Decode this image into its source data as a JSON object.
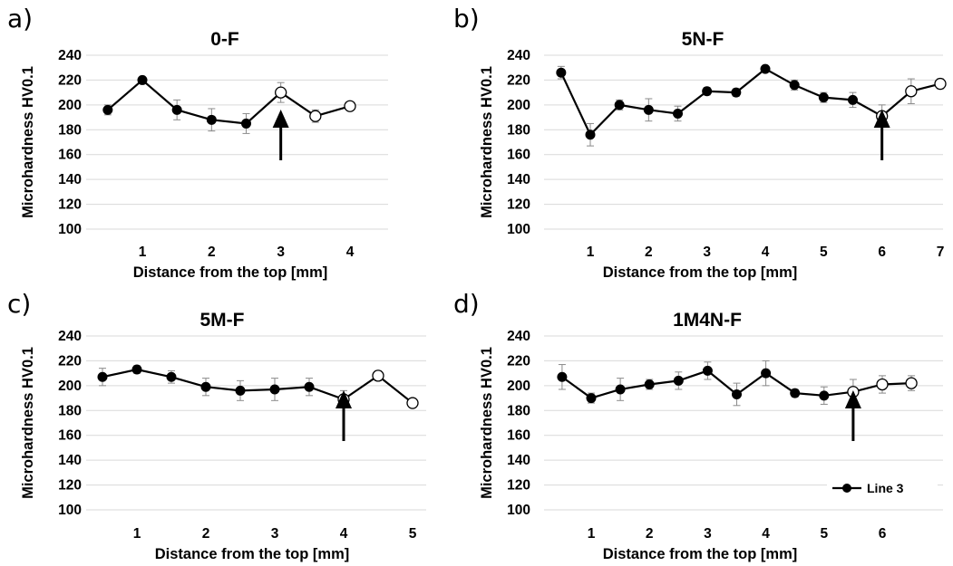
{
  "chart_data": [
    {
      "type": "line",
      "panel_label": "a)",
      "title": "0-F",
      "xlabel": "Distance from the top [mm]",
      "ylabel": "Microhardness HV0.1",
      "ylim": [
        100,
        240
      ],
      "yticks": [
        100,
        120,
        140,
        160,
        180,
        200,
        220,
        240
      ],
      "xlim": [
        0.5,
        4.5
      ],
      "xticks": [
        1,
        2,
        3,
        4
      ],
      "grid": true,
      "series": [
        {
          "name": "Line 3",
          "x": [
            0.5,
            1.0,
            1.5,
            2.0,
            2.5,
            3.0,
            3.5,
            4.0
          ],
          "y": [
            196,
            220,
            196,
            188,
            185,
            210,
            191,
            199
          ],
          "err": [
            4,
            2,
            8,
            9,
            8,
            8,
            5,
            3
          ],
          "open_marker": [
            false,
            false,
            false,
            false,
            false,
            true,
            true,
            true
          ]
        }
      ],
      "annotations": [
        {
          "type": "arrow",
          "x": 3.0,
          "label": ""
        }
      ]
    },
    {
      "type": "line",
      "panel_label": "b)",
      "title": "5N-F",
      "xlabel": "Distance from the top [mm]",
      "ylabel": "Microhardness HV0.1",
      "ylim": [
        100,
        240
      ],
      "yticks": [
        100,
        120,
        140,
        160,
        180,
        200,
        220,
        240
      ],
      "xlim": [
        0.5,
        7.0
      ],
      "xticks": [
        1,
        2,
        3,
        4,
        5,
        6,
        7
      ],
      "grid": true,
      "series": [
        {
          "name": "Line 3",
          "x": [
            0.5,
            1.0,
            1.5,
            2.0,
            2.5,
            3.0,
            3.5,
            4.0,
            4.5,
            5.0,
            5.5,
            6.0,
            6.5,
            7.0
          ],
          "y": [
            226,
            176,
            200,
            196,
            193,
            211,
            210,
            229,
            216,
            206,
            204,
            191,
            211,
            217
          ],
          "err": [
            5,
            9,
            4,
            9,
            6,
            3,
            3,
            2,
            4,
            4,
            6,
            9,
            10,
            4
          ],
          "open_marker": [
            false,
            false,
            false,
            false,
            false,
            false,
            false,
            false,
            false,
            false,
            false,
            true,
            true,
            true
          ]
        }
      ],
      "annotations": [
        {
          "type": "arrow",
          "x": 6.0,
          "label": ""
        }
      ]
    },
    {
      "type": "line",
      "panel_label": "c)",
      "title": "5M-F",
      "xlabel": "Distance from the top [mm]",
      "ylabel": "Microhardness HV0.1",
      "ylim": [
        100,
        240
      ],
      "yticks": [
        100,
        120,
        140,
        160,
        180,
        200,
        220,
        240
      ],
      "xlim": [
        0.5,
        5.0
      ],
      "xticks": [
        1,
        2,
        3,
        4,
        5
      ],
      "grid": true,
      "series": [
        {
          "name": "Line 3",
          "x": [
            0.5,
            1.0,
            1.5,
            2.0,
            2.5,
            3.0,
            3.5,
            4.0,
            4.5,
            5.0
          ],
          "y": [
            207,
            213,
            207,
            199,
            196,
            197,
            199,
            189,
            208,
            186
          ],
          "err": [
            7,
            3,
            5,
            7,
            8,
            9,
            7,
            7,
            4,
            3
          ],
          "open_marker": [
            false,
            false,
            false,
            false,
            false,
            false,
            false,
            true,
            true,
            true
          ]
        }
      ],
      "annotations": [
        {
          "type": "arrow",
          "x": 4.0,
          "label": ""
        }
      ]
    },
    {
      "type": "line",
      "panel_label": "d)",
      "title": "1M4N-F",
      "xlabel": "Distance from the top [mm]",
      "ylabel": "Microhardness HV0.1",
      "ylim": [
        100,
        240
      ],
      "yticks": [
        100,
        120,
        140,
        160,
        180,
        200,
        220,
        240
      ],
      "xlim": [
        0.5,
        6.5
      ],
      "xticks": [
        1,
        2,
        3,
        4,
        5,
        6
      ],
      "grid": true,
      "series": [
        {
          "name": "Line 3",
          "x": [
            0.5,
            1.0,
            1.5,
            2.0,
            2.5,
            3.0,
            3.5,
            4.0,
            4.5,
            5.0,
            5.5,
            6.0,
            6.5
          ],
          "y": [
            207,
            190,
            197,
            201,
            204,
            212,
            193,
            210,
            194,
            192,
            195,
            201,
            202
          ],
          "err": [
            10,
            4,
            9,
            4,
            7,
            7,
            9,
            10,
            3,
            7,
            10,
            7,
            6
          ],
          "open_marker": [
            false,
            false,
            false,
            false,
            false,
            false,
            false,
            false,
            false,
            false,
            true,
            true,
            true
          ]
        }
      ],
      "annotations": [
        {
          "type": "arrow",
          "x": 5.5,
          "label": ""
        }
      ],
      "legend": {
        "label": "Line 3",
        "placement": "bottom-right"
      }
    }
  ]
}
